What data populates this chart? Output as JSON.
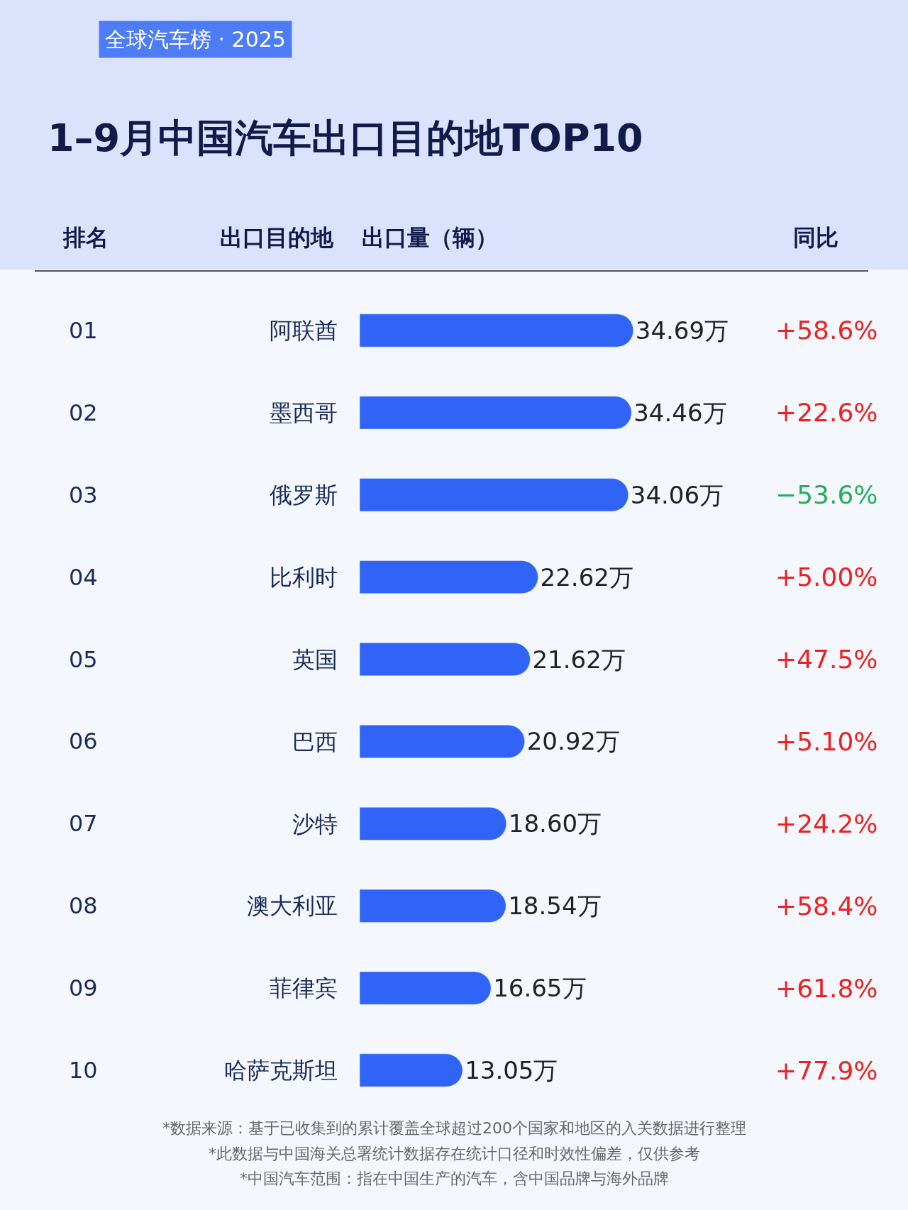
{
  "chart_data": {
    "type": "bar",
    "orientation": "horizontal",
    "title": "1–9月中国汽车出口目的地TOP10",
    "subtitle": "全球汽车榜 · 2025",
    "xlabel": "出口量（辆）",
    "ylabel": "出口目的地",
    "categories": [
      "阿联酋",
      "墨西哥",
      "俄罗斯",
      "比利时",
      "英国",
      "巴西",
      "沙特",
      "澳大利亚",
      "菲律宾",
      "哈萨克斯坦"
    ],
    "values": [
      34.69,
      34.46,
      34.06,
      22.62,
      21.62,
      20.92,
      18.6,
      18.54,
      16.65,
      13.05
    ],
    "value_labels": [
      "34.69万",
      "34.46万",
      "34.06万",
      "22.62万",
      "21.62万",
      "20.92万",
      "18.60万",
      "18.54万",
      "16.65万",
      "13.05万"
    ],
    "color": "#2f64f6",
    "tick_labels": "y",
    "grid": false,
    "legend": false,
    "annotations": [
      "排名",
      "同比",
      "01",
      "02",
      "03",
      "04",
      "05",
      "06",
      "07",
      "08",
      "09",
      "10",
      "+58.6%",
      "+22.6%",
      "−53.6%",
      "+5.00%",
      "+47.5%",
      "+5.10%",
      "+24.2%",
      "+58.4%",
      "+61.8%",
      "+77.9%",
      "*数据来源：基于已收集到的累计覆盖全球超过200个国家和地区的入关数据进行整理",
      "*此数据与中国海关总署统计数据存在统计口径和时效性偏差，仅供参考",
      "*中国汽车范围：指在中国生产的汽车，含中国品牌与海外品牌"
    ]
  }
}
